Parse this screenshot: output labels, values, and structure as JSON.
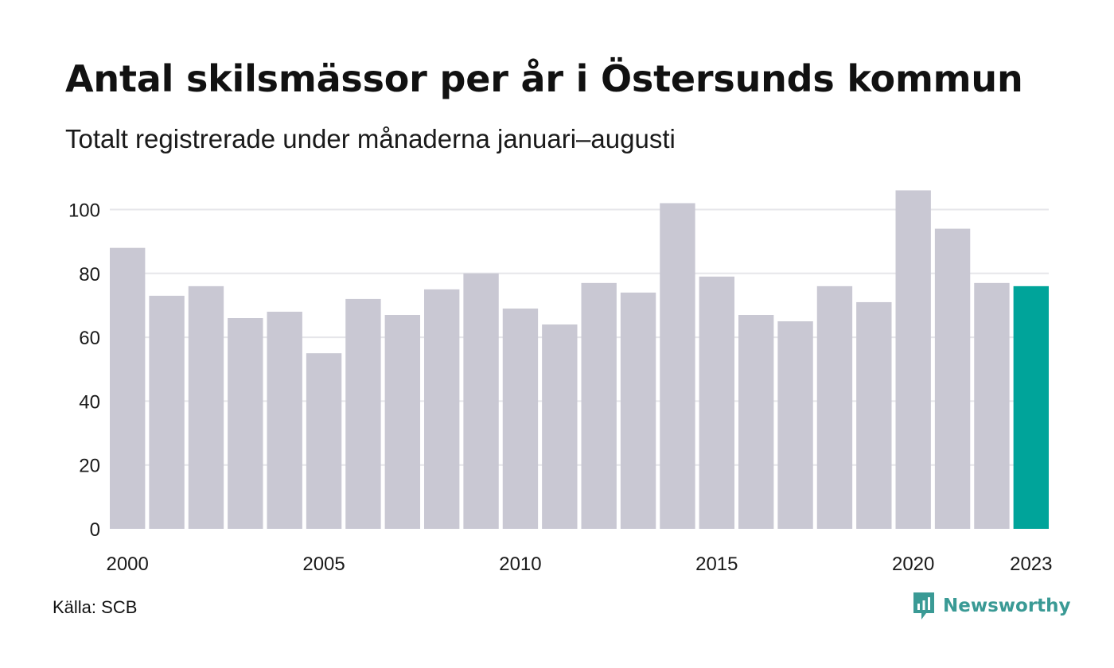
{
  "title": "Antal skilsmässor per år i Östersunds kommun",
  "subtitle": "Totalt registrerade under månaderna januari–augusti",
  "source": "Källa: SCB",
  "brand": {
    "name": "Newsworthy",
    "icon": "newsworthy-logo-icon",
    "color": "#3a9a95"
  },
  "colors": {
    "bar": "#c9c8d3",
    "highlight": "#00a49a",
    "grid": "#e6e6ea"
  },
  "chart_data": {
    "type": "bar",
    "x": [
      2000,
      2001,
      2002,
      2003,
      2004,
      2005,
      2006,
      2007,
      2008,
      2009,
      2010,
      2011,
      2012,
      2013,
      2014,
      2015,
      2016,
      2017,
      2018,
      2019,
      2020,
      2021,
      2022,
      2023
    ],
    "values": [
      88,
      73,
      76,
      66,
      68,
      55,
      72,
      67,
      75,
      80,
      69,
      64,
      77,
      74,
      102,
      79,
      67,
      65,
      76,
      71,
      106,
      94,
      77,
      76
    ],
    "highlight": [
      2023
    ],
    "x_tick_labels": [
      "2000",
      "2005",
      "2010",
      "2015",
      "2020",
      "2023"
    ],
    "y_ticks": [
      0,
      20,
      40,
      60,
      80,
      100
    ],
    "ylim": [
      0,
      106
    ],
    "xlabel": "",
    "ylabel": "",
    "grid": true,
    "legend": false
  }
}
